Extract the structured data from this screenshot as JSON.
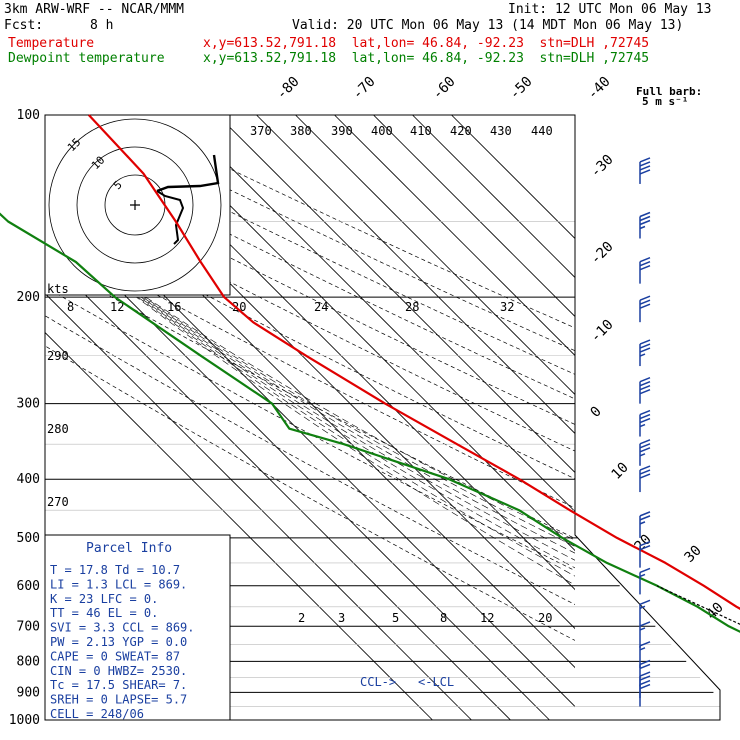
{
  "header": {
    "model": "3km ARW-WRF -- NCAR/MMM",
    "init": "Init: 12 UTC Mon 06 May 13",
    "fcst_label": "Fcst:",
    "fcst_value": "8 h",
    "valid": "Valid: 20 UTC Mon 06 May 13 (14 MDT Mon 06 May 13)",
    "temp_label": "Temperature",
    "temp_loc": "x,y=613.52,791.18  lat,lon= 46.84, -92.23  stn=DLH ,72745",
    "dew_label": "Dewpoint temperature",
    "dew_loc": "x,y=613.52,791.18  lat,lon= 46.84, -92.23  stn=DLH ,72745"
  },
  "colors": {
    "temperature": "#e00000",
    "dewpoint": "#108010",
    "wind": "#1a3fa0",
    "grid": "#000000"
  },
  "chart_data": {
    "type": "line",
    "title": "Skew-T log-P sounding",
    "pressure_levels": [
      100,
      200,
      300,
      400,
      500,
      600,
      700,
      800,
      900,
      1000
    ],
    "isotherm_labels": [
      "-80",
      "-70",
      "-60",
      "-50",
      "-40",
      "-30",
      "-20",
      "-10",
      "0",
      "10",
      "20",
      "30",
      "40"
    ],
    "theta_e_labels": [
      "370",
      "380",
      "390",
      "400",
      "410",
      "420",
      "430",
      "440"
    ],
    "theta_labels": [
      "290",
      "280",
      "270"
    ],
    "mixing_ratio_labels": [
      "2",
      "3",
      "5",
      "8",
      "12",
      "20"
    ],
    "dry_adiabat_labels": [
      "8",
      "12",
      "16",
      "20",
      "24",
      "28",
      "32"
    ],
    "hodograph": {
      "unit_label": "kts",
      "ring_labels": [
        "5",
        "10",
        "15"
      ]
    },
    "wind_legend": {
      "line1": "Full barb:",
      "line2": "5 m s⁻¹"
    },
    "markers": {
      "ccl": "CCL->",
      "lcl": "<-LCL"
    },
    "series": [
      {
        "name": "Temperature",
        "points": [
          [
            100,
            -43
          ],
          [
            125,
            -44
          ],
          [
            150,
            -48
          ],
          [
            175,
            -52
          ],
          [
            200,
            -55
          ],
          [
            220,
            -54
          ],
          [
            250,
            -49
          ],
          [
            300,
            -41
          ],
          [
            350,
            -33
          ],
          [
            400,
            -26
          ],
          [
            450,
            -21
          ],
          [
            500,
            -16
          ],
          [
            550,
            -10
          ],
          [
            600,
            -6
          ],
          [
            650,
            -3
          ],
          [
            700,
            1
          ],
          [
            750,
            4
          ],
          [
            800,
            7
          ],
          [
            850,
            10
          ],
          [
            875,
            12
          ],
          [
            925,
            16
          ],
          [
            950,
            17.8
          ]
        ]
      },
      {
        "name": "Dewpoint temperature",
        "points": [
          [
            100,
            -82
          ],
          [
            125,
            -92
          ],
          [
            150,
            -91
          ],
          [
            175,
            -84
          ],
          [
            200,
            -83
          ],
          [
            250,
            -76
          ],
          [
            300,
            -70
          ],
          [
            330,
            -72
          ],
          [
            350,
            -62
          ],
          [
            400,
            -44
          ],
          [
            450,
            -34
          ],
          [
            500,
            -30
          ],
          [
            550,
            -25
          ],
          [
            600,
            -18
          ],
          [
            650,
            -13
          ],
          [
            700,
            -10
          ],
          [
            750,
            -5
          ],
          [
            800,
            -1
          ],
          [
            850,
            3
          ],
          [
            875,
            7
          ],
          [
            925,
            9
          ],
          [
            950,
            10.7
          ]
        ]
      }
    ],
    "wind_barbs": [
      {
        "p": 130,
        "kts": 40
      },
      {
        "p": 160,
        "kts": 35
      },
      {
        "p": 190,
        "kts": 30
      },
      {
        "p": 220,
        "kts": 30
      },
      {
        "p": 260,
        "kts": 35
      },
      {
        "p": 300,
        "kts": 40
      },
      {
        "p": 340,
        "kts": 35
      },
      {
        "p": 380,
        "kts": 35
      },
      {
        "p": 420,
        "kts": 30
      },
      {
        "p": 500,
        "kts": 25
      },
      {
        "p": 560,
        "kts": 20
      },
      {
        "p": 620,
        "kts": 15
      },
      {
        "p": 700,
        "kts": 15
      },
      {
        "p": 760,
        "kts": 15
      },
      {
        "p": 820,
        "kts": 15
      },
      {
        "p": 880,
        "kts": 20
      },
      {
        "p": 920,
        "kts": 20
      },
      {
        "p": 950,
        "kts": 20
      }
    ]
  },
  "parcel_info": {
    "title": "Parcel Info",
    "rows": [
      "T  =    17.8  Td =  10.7",
      "LI =     1.3  LCL =  869.",
      "K  =      23  LFC =    0.",
      "TT =      46  EL  =    0.",
      "SVI =    3.3  CCL =  869.",
      "PW =    2.13  YGP =   0.0",
      "CAPE =     0  SWEAT=   87",
      "CIN =      0  HWBZ= 2530.",
      "Tc =    17.5  SHEAR=   7.",
      "SREH =     0  LAPSE=  5.7",
      "CELL = 248/06"
    ]
  }
}
